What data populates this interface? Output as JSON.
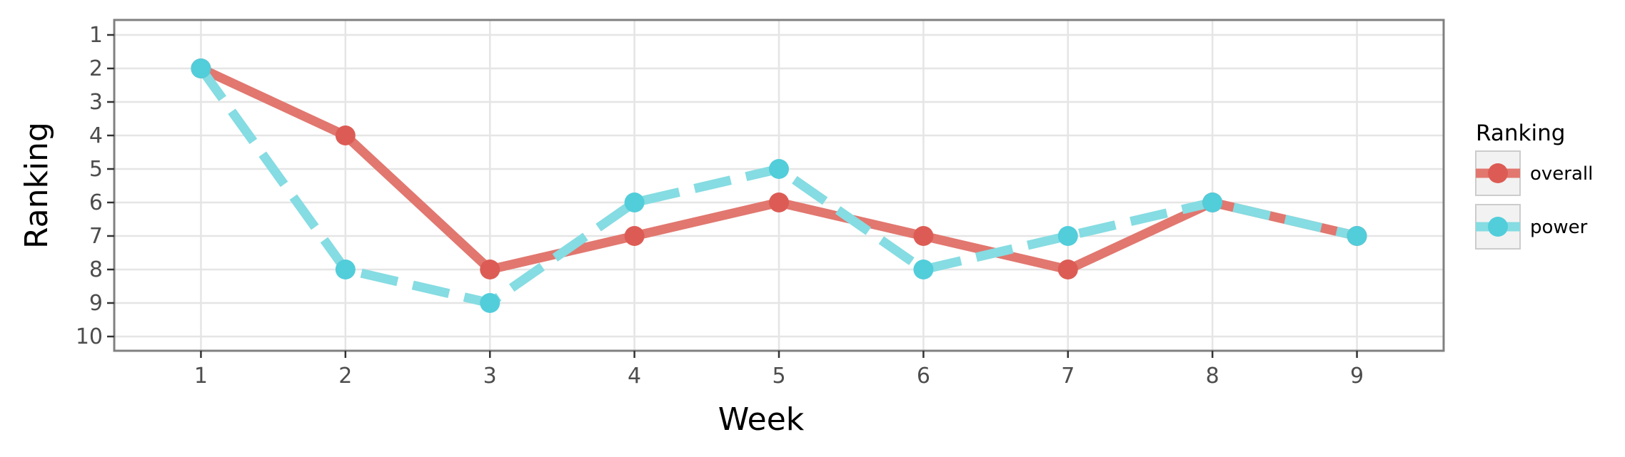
{
  "chart_data": {
    "type": "line",
    "xlabel": "Week",
    "ylabel": "Ranking",
    "x": [
      1,
      2,
      3,
      4,
      5,
      6,
      7,
      8,
      9
    ],
    "x_ticks": [
      "1",
      "2",
      "3",
      "4",
      "5",
      "6",
      "7",
      "8",
      "9"
    ],
    "y_ticks": [
      "1",
      "2",
      "3",
      "4",
      "5",
      "6",
      "7",
      "8",
      "9",
      "10"
    ],
    "xlim": [
      0.4,
      9.6
    ],
    "ylim": [
      1,
      10
    ],
    "y_reversed": true,
    "grid": true,
    "legend": {
      "title": "Ranking",
      "placement": "right"
    },
    "series": [
      {
        "name": "overall",
        "values": [
          2,
          4,
          8,
          7,
          6,
          7,
          8,
          6,
          7
        ],
        "color": "#E1776F",
        "point_color": "#DC5C55",
        "dash": "solid"
      },
      {
        "name": "power",
        "values": [
          2,
          8,
          9,
          6,
          5,
          8,
          7,
          6,
          7
        ],
        "color": "#85DCE2",
        "point_color": "#52CDDA",
        "dash": "dashed"
      }
    ]
  }
}
